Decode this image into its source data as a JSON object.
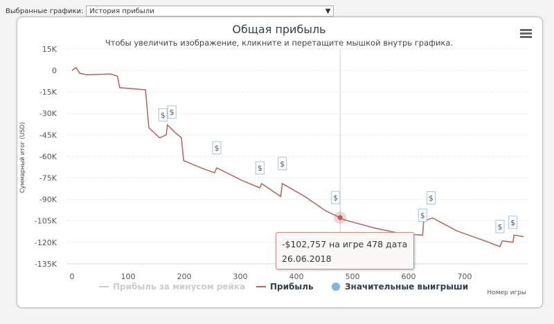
{
  "selector": {
    "label": "Выбранные графики:",
    "value": "История прибыли"
  },
  "tooltip": {
    "line1": "-$102,757 на игре 478 дата",
    "line2": "26.06.2018"
  },
  "colors": {
    "profit": "#b5605a",
    "rake": "#cccccc",
    "wins": "#7cb5ec"
  },
  "chart_data": {
    "type": "line",
    "title": "Общая прибыль",
    "subtitle": "Чтобы увеличить изображение, кликните и перетащите мышкой внутрь графика.",
    "xlabel": "Номер игры",
    "ylabel": "Суммарный итог (USD)",
    "xlim": [
      0,
      810
    ],
    "ylim": [
      -135000,
      15000
    ],
    "xticks": [
      "0",
      "100",
      "200",
      "300",
      "400",
      "500",
      "600",
      "700"
    ],
    "yticks": [
      "15K",
      "0",
      "-15K",
      "-30K",
      "-45K",
      "-60K",
      "-75K",
      "-90K",
      "-105K",
      "-120K",
      "-135K"
    ],
    "legend": [
      "Прибыль за минусом рейка",
      "Прибыль",
      "Значительные выигрыши"
    ],
    "legend_position": "bottom",
    "series": [
      {
        "name": "Прибыль",
        "x": [
          0,
          7,
          14,
          26,
          69,
          81,
          85,
          131,
          137,
          156,
          168,
          170,
          183,
          195,
          199,
          230,
          254,
          258,
          304,
          335,
          338,
          372,
          375,
          415,
          452,
          478,
          483,
          539,
          588,
          625,
          627,
          643,
          686,
          736,
          763,
          767,
          786,
          788,
          805
        ],
        "y": [
          0,
          2,
          -2,
          -3,
          -2.5,
          -4,
          -12,
          -13.5,
          -40,
          -47,
          -45,
          -38,
          -43,
          -47,
          -63,
          -68,
          -71.5,
          -68,
          -77,
          -82,
          -79,
          -88,
          -79,
          -88,
          -98,
          -102.757,
          -104,
          -110,
          -114,
          -115,
          -105,
          -103,
          -112,
          -119,
          -123,
          -119,
          -120,
          -115,
          -116
        ]
      }
    ],
    "big_wins_x": [
      162,
      178,
      258,
      335,
      375,
      470,
      625,
      640,
      763,
      786
    ],
    "highlight": {
      "x": 478,
      "y": -102.757
    }
  }
}
